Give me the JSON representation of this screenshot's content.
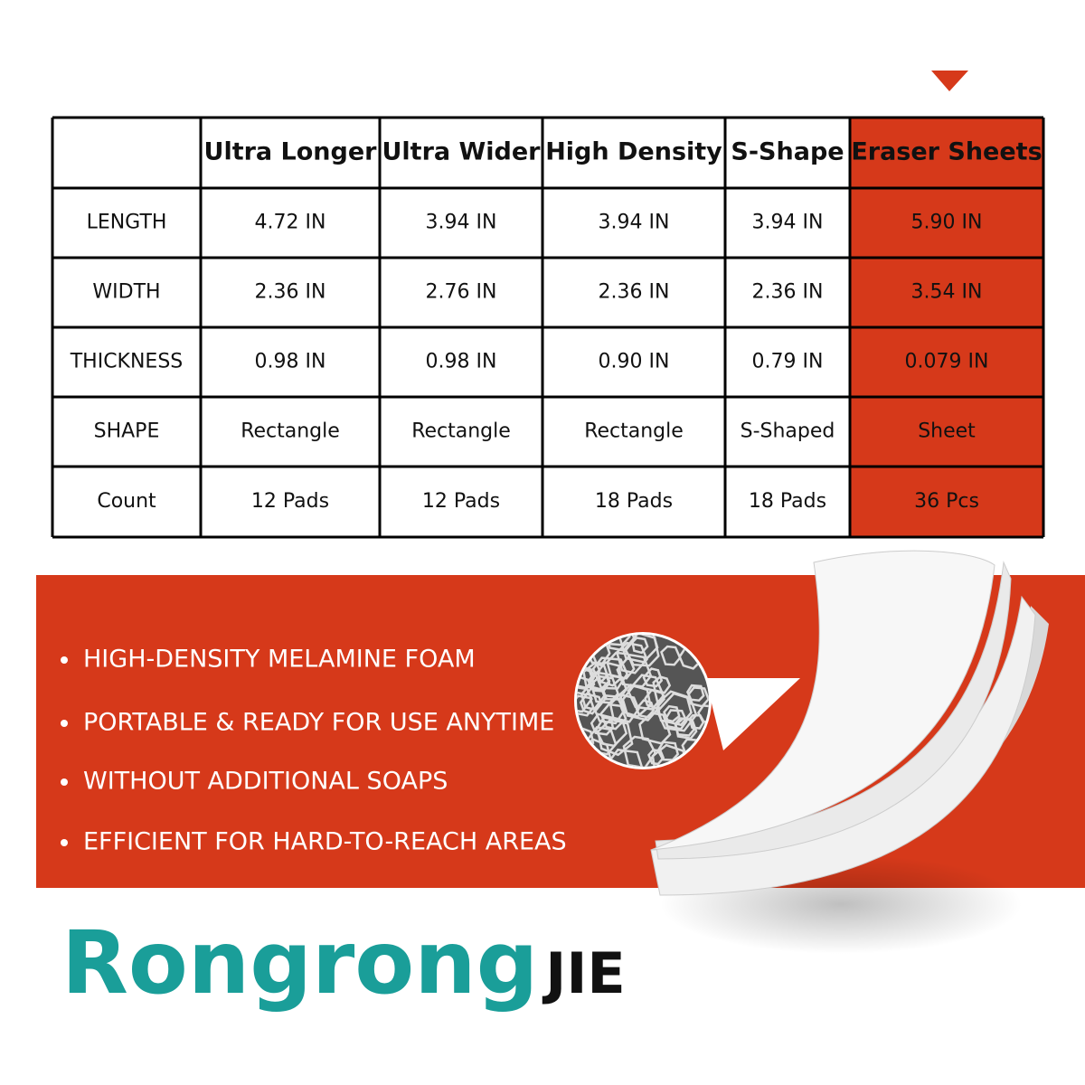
{
  "table": {
    "columns": [
      "Ultra Longer",
      "Ultra Wider",
      "High Density",
      "S-Shape",
      "Eraser Sheets"
    ],
    "rows": [
      [
        "LENGTH",
        "4.72 IN",
        "3.94 IN",
        "3.94 IN",
        "3.94 IN",
        "5.90 IN"
      ],
      [
        "WIDTH",
        "2.36 IN",
        "2.76 IN",
        "2.36 IN",
        "2.36 IN",
        "3.54 IN"
      ],
      [
        "THICKNESS",
        "0.98 IN",
        "0.98 IN",
        "0.90 IN",
        "0.79 IN",
        "0.079 IN"
      ],
      [
        "SHAPE",
        "Rectangle",
        "Rectangle",
        "Rectangle",
        "S-Shaped",
        "Sheet"
      ],
      [
        "Count",
        "12 Pads",
        "12 Pads",
        "18 Pads",
        "18 Pads",
        "36 Pcs"
      ]
    ]
  },
  "features": [
    "HIGH-DENSITY MELAMINE FOAM",
    "PORTABLE & READY FOR USE ANYTIME",
    "WITHOUT ADDITIONAL SOAPS",
    "EFFICIENT FOR HARD-TO-REACH AREAS"
  ],
  "brand": {
    "name": "Rongrong",
    "suffix": "JIE"
  }
}
